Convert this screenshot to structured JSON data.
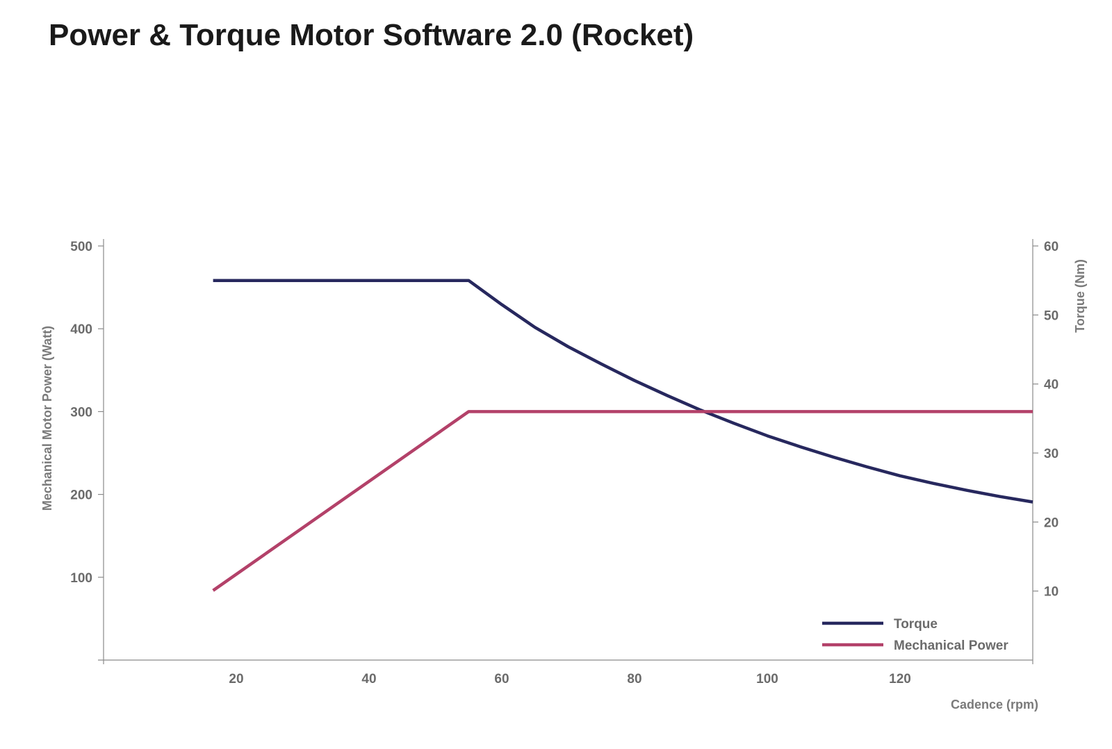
{
  "title": "Power & Torque Motor Software 2.0 (Rocket)",
  "chart_data": {
    "type": "line",
    "title": "Power & Torque Motor Software 2.0 (Rocket)",
    "xlabel": "Cadence (rpm)",
    "ylabel_left": "Mechanical Motor Power (Watt)",
    "ylabel_right": "Torque (Nm)",
    "xlim": [
      0,
      140
    ],
    "ylim_left": [
      0,
      500
    ],
    "ylim_right": [
      0,
      60
    ],
    "x_ticks": [
      20,
      40,
      60,
      80,
      100,
      120
    ],
    "y_left_ticks": [
      100,
      200,
      300,
      400,
      500
    ],
    "y_right_ticks": [
      10,
      20,
      30,
      40,
      50,
      60
    ],
    "grid": false,
    "legend_position": "bottom-right",
    "series": [
      {
        "name": "Torque",
        "axis": "right",
        "color": "#27285e",
        "x": [
          16.5,
          30,
          40,
          55,
          60,
          65,
          70,
          75,
          80,
          85,
          90,
          95,
          100,
          105,
          110,
          115,
          120,
          125,
          130,
          135,
          140
        ],
        "y": [
          55,
          55,
          55,
          55,
          51.5,
          48.2,
          45.4,
          42.9,
          40.5,
          38.3,
          36.2,
          34.3,
          32.5,
          30.9,
          29.4,
          28,
          26.7,
          25.6,
          24.6,
          23.7,
          22.9
        ]
      },
      {
        "name": "Mechanical Power",
        "axis": "left",
        "color": "#b34169",
        "x": [
          16.5,
          55,
          140
        ],
        "y": [
          84,
          300,
          300
        ]
      }
    ]
  }
}
